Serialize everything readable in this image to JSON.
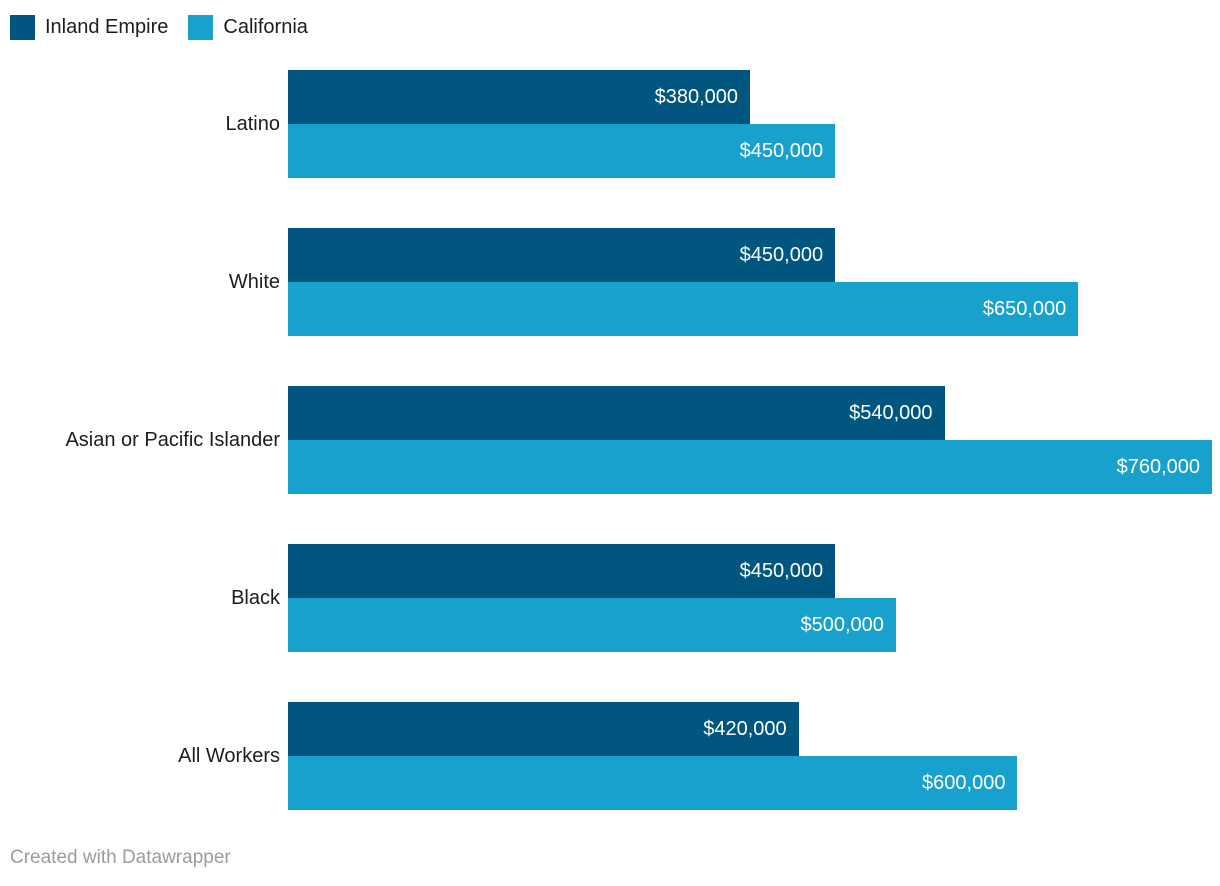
{
  "chart_data": {
    "type": "bar",
    "orientation": "horizontal",
    "title": "",
    "xlabel": "",
    "ylabel": "",
    "xlim": [
      0,
      760000
    ],
    "grid": false,
    "legend_position": "top-left",
    "categories": [
      "Latino",
      "White",
      "Asian or Pacific Islander",
      "Black",
      "All Workers"
    ],
    "series": [
      {
        "name": "Inland Empire",
        "color": "#00567e",
        "values": [
          380000,
          450000,
          540000,
          450000,
          420000
        ],
        "labels": [
          "$380,000",
          "$450,000",
          "$540,000",
          "$450,000",
          "$420,000"
        ]
      },
      {
        "name": "California",
        "color": "#18a1cd",
        "values": [
          450000,
          650000,
          760000,
          500000,
          600000
        ],
        "labels": [
          "$450,000",
          "$650,000",
          "$760,000",
          "$500,000",
          "$600,000"
        ]
      }
    ]
  },
  "legend": {
    "items": [
      {
        "label": "Inland Empire",
        "color": "#00567e"
      },
      {
        "label": "California",
        "color": "#18a1cd"
      }
    ]
  },
  "footer": {
    "credit": "Created with Datawrapper"
  }
}
